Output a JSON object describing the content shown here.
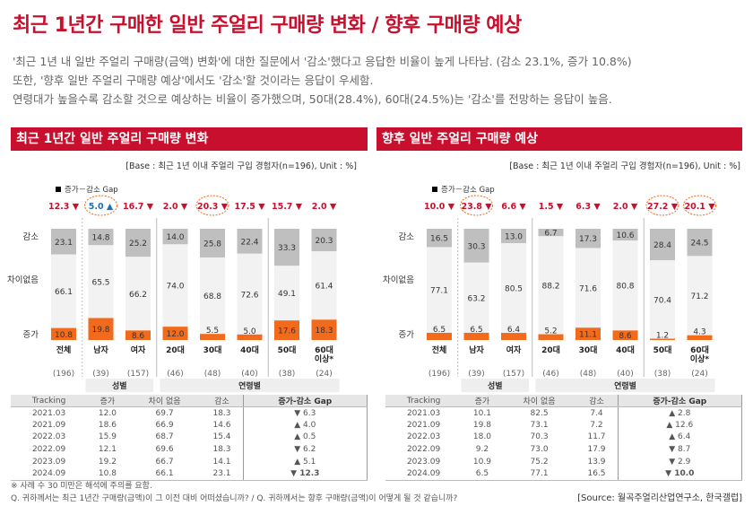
{
  "title": "최근 1년간 구매한 일반 주얼리 구매량 변화 / 향후 구매량 예상",
  "description": [
    "'최근 1년 내 일반 주얼리 구매량(금액) 변화'에 대한 질문에서 '감소'했다고 응답한 비율이 높게 나타남. (감소 23.1%, 증가 10.8%)",
    "또한, '향후 일반 주얼리 구매량 예상'에서도 '감소'할 것이라는 응답이 우세함.",
    "연령대가 높을수록 감소할 것으로 예상하는 비율이 증가했으며, 50대(28.4%), 60대(24.5%)는 '감소'를 전망하는 응답이 높음."
  ],
  "base_text": "[Base : 최근 1년 이내 주얼리 구입 경험자(n=196), Unit : %]",
  "legend_gap": "증가－감소 Gap",
  "row_labels": [
    "감소",
    "차이없음",
    "증가"
  ],
  "group_labels": [
    "성별",
    "연령별"
  ],
  "categories": [
    "전체",
    "남자",
    "여자",
    "20대",
    "30대",
    "40대",
    "50대",
    "60대 이상*"
  ],
  "n": [
    "(196)",
    "(39)",
    "(157)",
    "(46)",
    "(48)",
    "(40)",
    "(38)",
    "(24)"
  ],
  "colors": {
    "decrease": "#bfbfbf",
    "neutral": "#f2f2f2",
    "increase": "#f26a1b",
    "accent": "#c8102e",
    "up": "#1f6fb4"
  },
  "tracking_headers": [
    "Tracking",
    "증가",
    "차이 없음",
    "감소",
    "증가-감소 Gap"
  ],
  "chart_data": [
    {
      "type": "bar",
      "title": "최근 1년간 일반 주얼리 구매량 변화",
      "stacked": true,
      "categories": [
        "전체",
        "남자",
        "여자",
        "20대",
        "30대",
        "40대",
        "50대",
        "60대 이상*"
      ],
      "series": [
        {
          "name": "감소",
          "values": [
            23.1,
            14.8,
            25.2,
            14.0,
            25.8,
            22.4,
            33.3,
            20.3
          ]
        },
        {
          "name": "차이없음",
          "values": [
            66.1,
            65.5,
            66.2,
            74.0,
            68.8,
            72.6,
            49.1,
            61.4
          ]
        },
        {
          "name": "증가",
          "values": [
            10.8,
            19.8,
            8.6,
            12.0,
            5.5,
            5.0,
            17.6,
            18.3
          ]
        }
      ],
      "gap": [
        {
          "value": "12.3",
          "dir": "down",
          "circled": false
        },
        {
          "value": "5.0",
          "dir": "up",
          "circled": true
        },
        {
          "value": "16.7",
          "dir": "down",
          "circled": false
        },
        {
          "value": "2.0",
          "dir": "down",
          "circled": false
        },
        {
          "value": "20.3",
          "dir": "down",
          "circled": true
        },
        {
          "value": "17.5",
          "dir": "down",
          "circled": false
        },
        {
          "value": "15.7",
          "dir": "down",
          "circled": false
        },
        {
          "value": "2.0",
          "dir": "down",
          "circled": false
        }
      ],
      "tracking": [
        {
          "period": "2021.03",
          "increase": "12.0",
          "neutral": "69.7",
          "decrease": "18.3",
          "gap": "6.3",
          "dir": "down"
        },
        {
          "period": "2021.09",
          "increase": "18.6",
          "neutral": "66.9",
          "decrease": "14.6",
          "gap": "4.0",
          "dir": "up"
        },
        {
          "period": "2022.03",
          "increase": "15.9",
          "neutral": "68.7",
          "decrease": "15.4",
          "gap": "0.5",
          "dir": "up"
        },
        {
          "period": "2022.09",
          "increase": "12.1",
          "neutral": "69.6",
          "decrease": "18.3",
          "gap": "6.2",
          "dir": "down"
        },
        {
          "period": "2023.09",
          "increase": "19.2",
          "neutral": "66.7",
          "decrease": "14.1",
          "gap": "5.1",
          "dir": "up"
        },
        {
          "period": "2024.09",
          "increase": "10.8",
          "neutral": "66.1",
          "decrease": "23.1",
          "gap": "12.3",
          "dir": "down"
        }
      ]
    },
    {
      "type": "bar",
      "title": "향후 일반 주얼리 구매량 예상",
      "stacked": true,
      "categories": [
        "전체",
        "남자",
        "여자",
        "20대",
        "30대",
        "40대",
        "50대",
        "60대 이상*"
      ],
      "series": [
        {
          "name": "감소",
          "values": [
            16.5,
            30.3,
            13.0,
            6.7,
            17.3,
            10.6,
            28.4,
            24.5
          ]
        },
        {
          "name": "차이없음",
          "values": [
            77.1,
            63.2,
            80.5,
            88.2,
            71.6,
            80.8,
            70.4,
            71.2
          ]
        },
        {
          "name": "증가",
          "values": [
            6.5,
            6.5,
            6.4,
            5.2,
            11.1,
            8.6,
            1.2,
            4.3
          ]
        }
      ],
      "gap": [
        {
          "value": "10.0",
          "dir": "down",
          "circled": false
        },
        {
          "value": "23.8",
          "dir": "down",
          "circled": true
        },
        {
          "value": "6.6",
          "dir": "down",
          "circled": false
        },
        {
          "value": "1.5",
          "dir": "down",
          "circled": false
        },
        {
          "value": "6.3",
          "dir": "down",
          "circled": false
        },
        {
          "value": "2.0",
          "dir": "down",
          "circled": false
        },
        {
          "value": "27.2",
          "dir": "down",
          "circled": true
        },
        {
          "value": "20.1",
          "dir": "down",
          "circled": true
        }
      ],
      "tracking": [
        {
          "period": "2021.03",
          "increase": "10.1",
          "neutral": "82.5",
          "decrease": "7.4",
          "gap": "2.8",
          "dir": "up"
        },
        {
          "period": "2021.09",
          "increase": "19.8",
          "neutral": "73.1",
          "decrease": "7.2",
          "gap": "12.6",
          "dir": "up"
        },
        {
          "period": "2022.03",
          "increase": "18.0",
          "neutral": "70.3",
          "decrease": "11.7",
          "gap": "6.4",
          "dir": "up"
        },
        {
          "period": "2022.09",
          "increase": "9.2",
          "neutral": "73.0",
          "decrease": "17.9",
          "gap": "8.7",
          "dir": "down"
        },
        {
          "period": "2023.09",
          "increase": "10.9",
          "neutral": "75.2",
          "decrease": "13.9",
          "gap": "2.9",
          "dir": "down"
        },
        {
          "period": "2024.09",
          "increase": "6.5",
          "neutral": "77.1",
          "decrease": "16.5",
          "gap": "10.0",
          "dir": "down"
        }
      ]
    }
  ],
  "footnote_1": "※ 사례 수 30 미만은 해석에 주의를 요함.",
  "footnote_2": "Q. 귀하께서는 최근 1년간 구매량(금액)이 그 이전 대비 어떠셨습니까? / Q. 귀하께서는 향후 구매량(금액)이 어떻게 될 것 같습니까?",
  "source": "[Source: 월곡주얼리산업연구소, 한국갤럽]"
}
